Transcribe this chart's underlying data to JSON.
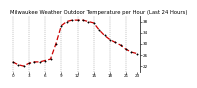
{
  "title": "Milwaukee Weather Outdoor Temperature per Hour (Last 24 Hours)",
  "hours": [
    0,
    1,
    2,
    3,
    4,
    5,
    6,
    7,
    8,
    9,
    10,
    11,
    12,
    13,
    14,
    15,
    16,
    17,
    18,
    19,
    20,
    21,
    22,
    23
  ],
  "temps": [
    23.5,
    22.5,
    22.0,
    23.0,
    23.5,
    23.5,
    24.0,
    24.5,
    30.0,
    36.5,
    38.0,
    38.5,
    38.5,
    38.5,
    38.0,
    37.5,
    35.0,
    33.0,
    31.5,
    30.5,
    29.5,
    28.0,
    27.0,
    26.5
  ],
  "line_color": "#cc0000",
  "marker_color": "#000000",
  "bg_color": "#ffffff",
  "grid_color": "#888888",
  "ylim": [
    20,
    40
  ],
  "yticks": [
    22,
    26,
    30,
    34,
    38
  ],
  "ytick_labels": [
    "22",
    "26",
    "30",
    "34",
    "38"
  ],
  "xtick_hours": [
    0,
    3,
    6,
    9,
    12,
    15,
    18,
    21,
    23
  ],
  "xtick_labels": [
    "0",
    "3",
    "6",
    "9",
    "12",
    "15",
    "18",
    "21",
    "23"
  ],
  "title_fontsize": 3.8,
  "tick_fontsize": 3.0
}
